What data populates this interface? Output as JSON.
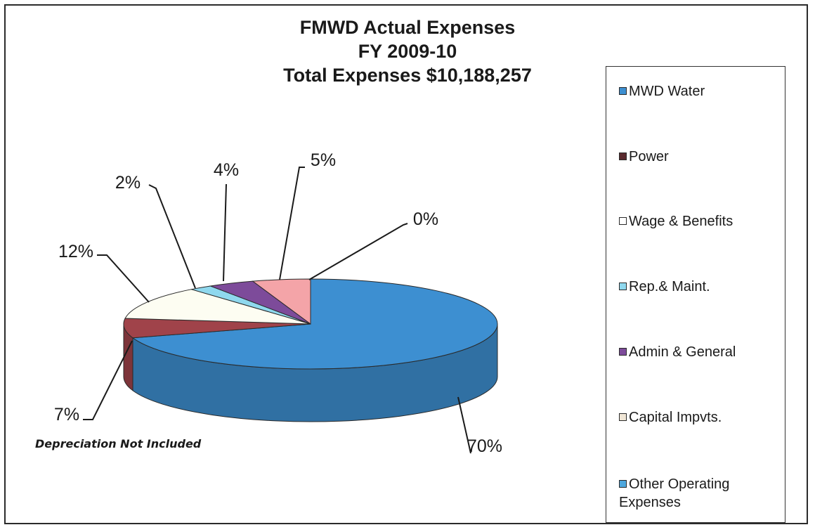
{
  "chart_data": {
    "type": "pie",
    "title": [
      "FMWD Actual Expenses",
      "FY 2009-10",
      "Total Expenses $10,188,257"
    ],
    "legend_position": "right",
    "three_d": true,
    "slices": [
      {
        "name": "MWD Water",
        "value": 70,
        "label": "70%",
        "color": "#3d8fd1"
      },
      {
        "name": "Power",
        "value": 7,
        "label": "7%",
        "color": "#a0434a"
      },
      {
        "name": "Wage & Benefits",
        "value": 12,
        "label": "12%",
        "color": "#fdfdf2"
      },
      {
        "name": "Rep.& Maint.",
        "value": 2,
        "label": "2%",
        "color": "#8fd8ee"
      },
      {
        "name": "Admin & General",
        "value": 4,
        "label": "4%",
        "color": "#7d4b9a"
      },
      {
        "name": "Capital Impvts.",
        "value": 5,
        "label": "5%",
        "color": "#f4a4a8"
      },
      {
        "name": "Other Operating Expenses",
        "value": 0,
        "label": "0%",
        "color": "#4fa8de"
      }
    ],
    "legend": [
      {
        "text": "MWD Water",
        "color": "#3d8fd1"
      },
      {
        "text": "Power",
        "color": "#5a2a2e"
      },
      {
        "text": "Wage & Benefits",
        "color": "#ffffff"
      },
      {
        "text": "Rep.& Maint.",
        "color": "#8fd8ee"
      },
      {
        "text": "Admin & General",
        "color": "#7d4b9a"
      },
      {
        "text": "Capital Impvts.",
        "color": "#f0e6d6"
      },
      {
        "text": "Other Operating\nExpenses",
        "color": "#4fa8de"
      }
    ],
    "note": "Depreciation Not Included"
  }
}
